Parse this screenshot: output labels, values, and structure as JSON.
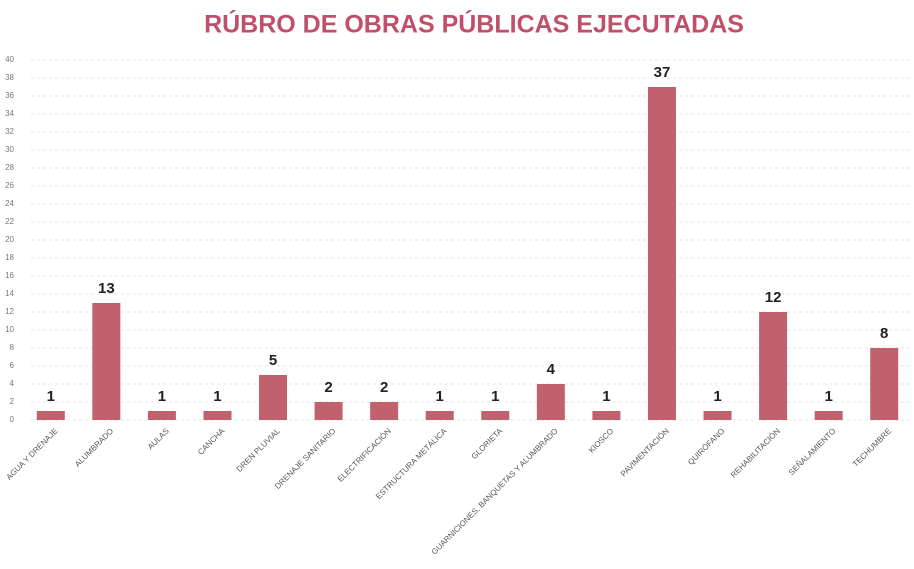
{
  "chart_data": {
    "type": "bar",
    "title": "RÚBRO DE OBRAS PÚBLICAS EJECUTADAS",
    "categories": [
      "AGUA Y DRENAJE",
      "ALUMBRADO",
      "AULAS",
      "CANCHA",
      "DREN PLUVIAL",
      "DRENAJE SANITARIO",
      "ELECTRIFICACIÓN",
      "ESTRUCTURA METÁLICA",
      "GLORIETA",
      "GUARNICIONES, BANQUETAS Y ALUMBRADO",
      "KIOSCO",
      "PAVIMENTACIÓN",
      "QUIRÓFANO",
      "REHABILITACIÓN",
      "SEÑALAMIENTO",
      "TECHUMBRE"
    ],
    "values": [
      1,
      13,
      1,
      1,
      5,
      2,
      2,
      1,
      1,
      4,
      1,
      37,
      1,
      12,
      1,
      8
    ],
    "color": "#c0616d",
    "ylim": [
      0,
      40
    ],
    "yticks": [
      0,
      2,
      4,
      6,
      8,
      10,
      12,
      14,
      16,
      18,
      20,
      22,
      24,
      26,
      28,
      30,
      32,
      34,
      36,
      38,
      40
    ],
    "grid": true
  }
}
